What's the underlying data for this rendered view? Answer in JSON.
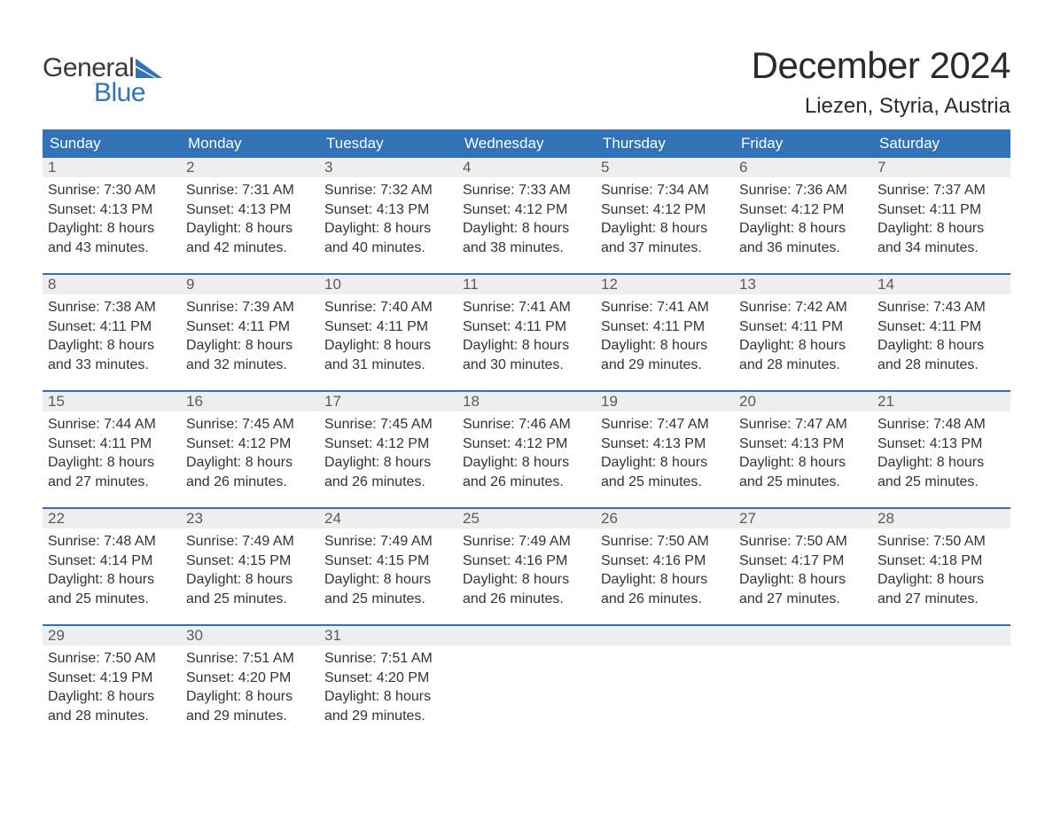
{
  "logo": {
    "text_general": "General",
    "text_blue": "Blue",
    "shape_color": "#3173b6"
  },
  "title": "December 2024",
  "location": "Liezen, Styria, Austria",
  "colors": {
    "header_bg": "#3173b6",
    "header_text": "#ffffff",
    "daynum_bg": "#eeeeee",
    "daynum_text": "#5a5a5a",
    "body_text": "#333333",
    "week_border": "#3173b6",
    "page_bg": "#ffffff"
  },
  "weekday_labels": [
    "Sunday",
    "Monday",
    "Tuesday",
    "Wednesday",
    "Thursday",
    "Friday",
    "Saturday"
  ],
  "weeks": [
    [
      {
        "day": "1",
        "sunrise": "Sunrise: 7:30 AM",
        "sunset": "Sunset: 4:13 PM",
        "daylight1": "Daylight: 8 hours",
        "daylight2": "and 43 minutes."
      },
      {
        "day": "2",
        "sunrise": "Sunrise: 7:31 AM",
        "sunset": "Sunset: 4:13 PM",
        "daylight1": "Daylight: 8 hours",
        "daylight2": "and 42 minutes."
      },
      {
        "day": "3",
        "sunrise": "Sunrise: 7:32 AM",
        "sunset": "Sunset: 4:13 PM",
        "daylight1": "Daylight: 8 hours",
        "daylight2": "and 40 minutes."
      },
      {
        "day": "4",
        "sunrise": "Sunrise: 7:33 AM",
        "sunset": "Sunset: 4:12 PM",
        "daylight1": "Daylight: 8 hours",
        "daylight2": "and 38 minutes."
      },
      {
        "day": "5",
        "sunrise": "Sunrise: 7:34 AM",
        "sunset": "Sunset: 4:12 PM",
        "daylight1": "Daylight: 8 hours",
        "daylight2": "and 37 minutes."
      },
      {
        "day": "6",
        "sunrise": "Sunrise: 7:36 AM",
        "sunset": "Sunset: 4:12 PM",
        "daylight1": "Daylight: 8 hours",
        "daylight2": "and 36 minutes."
      },
      {
        "day": "7",
        "sunrise": "Sunrise: 7:37 AM",
        "sunset": "Sunset: 4:11 PM",
        "daylight1": "Daylight: 8 hours",
        "daylight2": "and 34 minutes."
      }
    ],
    [
      {
        "day": "8",
        "sunrise": "Sunrise: 7:38 AM",
        "sunset": "Sunset: 4:11 PM",
        "daylight1": "Daylight: 8 hours",
        "daylight2": "and 33 minutes."
      },
      {
        "day": "9",
        "sunrise": "Sunrise: 7:39 AM",
        "sunset": "Sunset: 4:11 PM",
        "daylight1": "Daylight: 8 hours",
        "daylight2": "and 32 minutes."
      },
      {
        "day": "10",
        "sunrise": "Sunrise: 7:40 AM",
        "sunset": "Sunset: 4:11 PM",
        "daylight1": "Daylight: 8 hours",
        "daylight2": "and 31 minutes."
      },
      {
        "day": "11",
        "sunrise": "Sunrise: 7:41 AM",
        "sunset": "Sunset: 4:11 PM",
        "daylight1": "Daylight: 8 hours",
        "daylight2": "and 30 minutes."
      },
      {
        "day": "12",
        "sunrise": "Sunrise: 7:41 AM",
        "sunset": "Sunset: 4:11 PM",
        "daylight1": "Daylight: 8 hours",
        "daylight2": "and 29 minutes."
      },
      {
        "day": "13",
        "sunrise": "Sunrise: 7:42 AM",
        "sunset": "Sunset: 4:11 PM",
        "daylight1": "Daylight: 8 hours",
        "daylight2": "and 28 minutes."
      },
      {
        "day": "14",
        "sunrise": "Sunrise: 7:43 AM",
        "sunset": "Sunset: 4:11 PM",
        "daylight1": "Daylight: 8 hours",
        "daylight2": "and 28 minutes."
      }
    ],
    [
      {
        "day": "15",
        "sunrise": "Sunrise: 7:44 AM",
        "sunset": "Sunset: 4:11 PM",
        "daylight1": "Daylight: 8 hours",
        "daylight2": "and 27 minutes."
      },
      {
        "day": "16",
        "sunrise": "Sunrise: 7:45 AM",
        "sunset": "Sunset: 4:12 PM",
        "daylight1": "Daylight: 8 hours",
        "daylight2": "and 26 minutes."
      },
      {
        "day": "17",
        "sunrise": "Sunrise: 7:45 AM",
        "sunset": "Sunset: 4:12 PM",
        "daylight1": "Daylight: 8 hours",
        "daylight2": "and 26 minutes."
      },
      {
        "day": "18",
        "sunrise": "Sunrise: 7:46 AM",
        "sunset": "Sunset: 4:12 PM",
        "daylight1": "Daylight: 8 hours",
        "daylight2": "and 26 minutes."
      },
      {
        "day": "19",
        "sunrise": "Sunrise: 7:47 AM",
        "sunset": "Sunset: 4:13 PM",
        "daylight1": "Daylight: 8 hours",
        "daylight2": "and 25 minutes."
      },
      {
        "day": "20",
        "sunrise": "Sunrise: 7:47 AM",
        "sunset": "Sunset: 4:13 PM",
        "daylight1": "Daylight: 8 hours",
        "daylight2": "and 25 minutes."
      },
      {
        "day": "21",
        "sunrise": "Sunrise: 7:48 AM",
        "sunset": "Sunset: 4:13 PM",
        "daylight1": "Daylight: 8 hours",
        "daylight2": "and 25 minutes."
      }
    ],
    [
      {
        "day": "22",
        "sunrise": "Sunrise: 7:48 AM",
        "sunset": "Sunset: 4:14 PM",
        "daylight1": "Daylight: 8 hours",
        "daylight2": "and 25 minutes."
      },
      {
        "day": "23",
        "sunrise": "Sunrise: 7:49 AM",
        "sunset": "Sunset: 4:15 PM",
        "daylight1": "Daylight: 8 hours",
        "daylight2": "and 25 minutes."
      },
      {
        "day": "24",
        "sunrise": "Sunrise: 7:49 AM",
        "sunset": "Sunset: 4:15 PM",
        "daylight1": "Daylight: 8 hours",
        "daylight2": "and 25 minutes."
      },
      {
        "day": "25",
        "sunrise": "Sunrise: 7:49 AM",
        "sunset": "Sunset: 4:16 PM",
        "daylight1": "Daylight: 8 hours",
        "daylight2": "and 26 minutes."
      },
      {
        "day": "26",
        "sunrise": "Sunrise: 7:50 AM",
        "sunset": "Sunset: 4:16 PM",
        "daylight1": "Daylight: 8 hours",
        "daylight2": "and 26 minutes."
      },
      {
        "day": "27",
        "sunrise": "Sunrise: 7:50 AM",
        "sunset": "Sunset: 4:17 PM",
        "daylight1": "Daylight: 8 hours",
        "daylight2": "and 27 minutes."
      },
      {
        "day": "28",
        "sunrise": "Sunrise: 7:50 AM",
        "sunset": "Sunset: 4:18 PM",
        "daylight1": "Daylight: 8 hours",
        "daylight2": "and 27 minutes."
      }
    ],
    [
      {
        "day": "29",
        "sunrise": "Sunrise: 7:50 AM",
        "sunset": "Sunset: 4:19 PM",
        "daylight1": "Daylight: 8 hours",
        "daylight2": "and 28 minutes."
      },
      {
        "day": "30",
        "sunrise": "Sunrise: 7:51 AM",
        "sunset": "Sunset: 4:20 PM",
        "daylight1": "Daylight: 8 hours",
        "daylight2": "and 29 minutes."
      },
      {
        "day": "31",
        "sunrise": "Sunrise: 7:51 AM",
        "sunset": "Sunset: 4:20 PM",
        "daylight1": "Daylight: 8 hours",
        "daylight2": "and 29 minutes."
      },
      {
        "day": "",
        "sunrise": "",
        "sunset": "",
        "daylight1": "",
        "daylight2": ""
      },
      {
        "day": "",
        "sunrise": "",
        "sunset": "",
        "daylight1": "",
        "daylight2": ""
      },
      {
        "day": "",
        "sunrise": "",
        "sunset": "",
        "daylight1": "",
        "daylight2": ""
      },
      {
        "day": "",
        "sunrise": "",
        "sunset": "",
        "daylight1": "",
        "daylight2": ""
      }
    ]
  ]
}
